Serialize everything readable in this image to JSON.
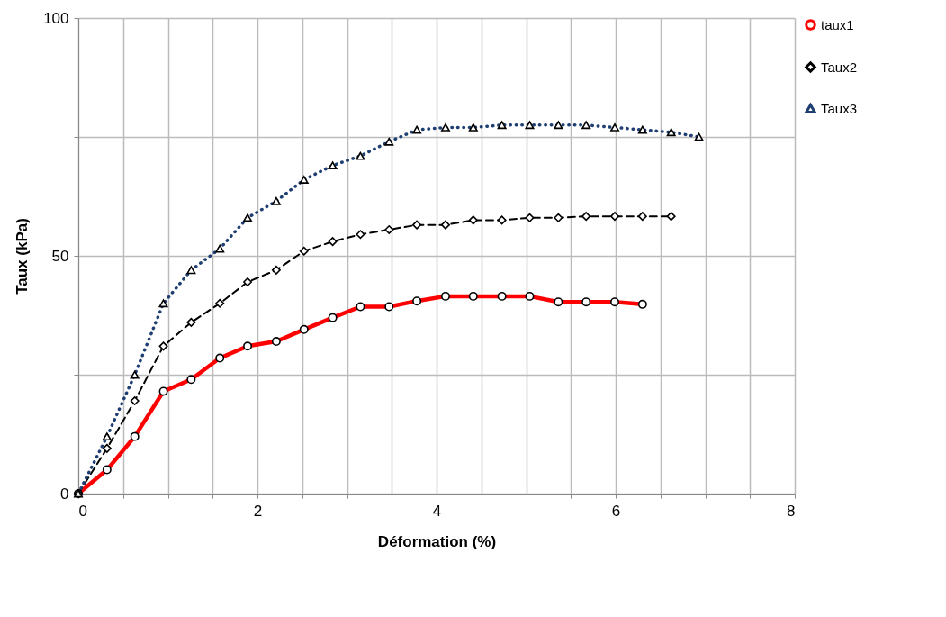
{
  "chart_data": {
    "type": "line",
    "xlabel": "Déformation (%)",
    "ylabel": "Taux (kPa)",
    "xlim": [
      0,
      8
    ],
    "xticks": [
      0,
      {
        "value": 0.5,
        "label": null
      },
      {
        "value": 1,
        "label": null
      },
      {
        "value": 1.5,
        "label": null
      },
      2,
      {
        "value": 2.5,
        "label": null
      },
      {
        "value": 3,
        "label": null
      },
      {
        "value": 3.5,
        "label": null
      },
      4,
      {
        "value": 4.5,
        "label": null
      },
      {
        "value": 5,
        "label": null
      },
      {
        "value": 5.5,
        "label": null
      },
      6,
      {
        "value": 6.5,
        "label": null
      },
      {
        "value": 7,
        "label": null
      },
      {
        "value": 7.5,
        "label": null
      },
      8
    ],
    "ylim": [
      0,
      100
    ],
    "yticks": [
      0,
      {
        "value": 25,
        "label": null
      },
      50,
      {
        "value": 75,
        "label": null
      },
      100
    ],
    "grid": true,
    "legend": "right",
    "series": [
      {
        "name": "taux1",
        "color": "#ff0000",
        "marker": "circle",
        "line_style": "solid",
        "x": [
          0,
          0.32,
          0.63,
          0.95,
          1.26,
          1.58,
          1.89,
          2.21,
          2.52,
          2.84,
          3.15,
          3.47,
          3.78,
          4.1,
          4.41,
          4.73,
          5.04,
          5.36,
          5.67,
          5.99,
          6.3
        ],
        "values": [
          0,
          5,
          12,
          21.5,
          24,
          28.5,
          31,
          32,
          34.5,
          37,
          39.3,
          39.3,
          40.5,
          41.5,
          41.5,
          41.5,
          41.5,
          40.3,
          40.3,
          40.3,
          39.8
        ]
      },
      {
        "name": "Taux2",
        "color": "#000000",
        "marker": "diamond",
        "line_style": "dashed",
        "x": [
          0,
          0.32,
          0.63,
          0.95,
          1.26,
          1.58,
          1.89,
          2.21,
          2.52,
          2.84,
          3.15,
          3.47,
          3.78,
          4.1,
          4.41,
          4.73,
          5.04,
          5.36,
          5.67,
          5.99,
          6.3,
          6.62
        ],
        "values": [
          0,
          9.5,
          19.5,
          31,
          36,
          40,
          44.5,
          47,
          51,
          53,
          54.5,
          55.5,
          56.5,
          56.5,
          57.5,
          57.5,
          58,
          58,
          58.3,
          58.3,
          58.3,
          58.3
        ]
      },
      {
        "name": "Taux3",
        "color": "#1f3f73",
        "marker": "triangle",
        "line_style": "dotted",
        "x": [
          0,
          0.32,
          0.63,
          0.95,
          1.26,
          1.58,
          1.89,
          2.21,
          2.52,
          2.84,
          3.15,
          3.47,
          3.78,
          4.1,
          4.41,
          4.73,
          5.04,
          5.36,
          5.67,
          5.99,
          6.3,
          6.62,
          6.93
        ],
        "values": [
          0,
          12,
          25,
          40,
          47,
          51.5,
          58,
          61.5,
          66,
          69,
          71,
          74,
          76.5,
          77,
          77,
          77.5,
          77.5,
          77.5,
          77.5,
          77,
          76.5,
          76,
          75
        ]
      }
    ]
  }
}
